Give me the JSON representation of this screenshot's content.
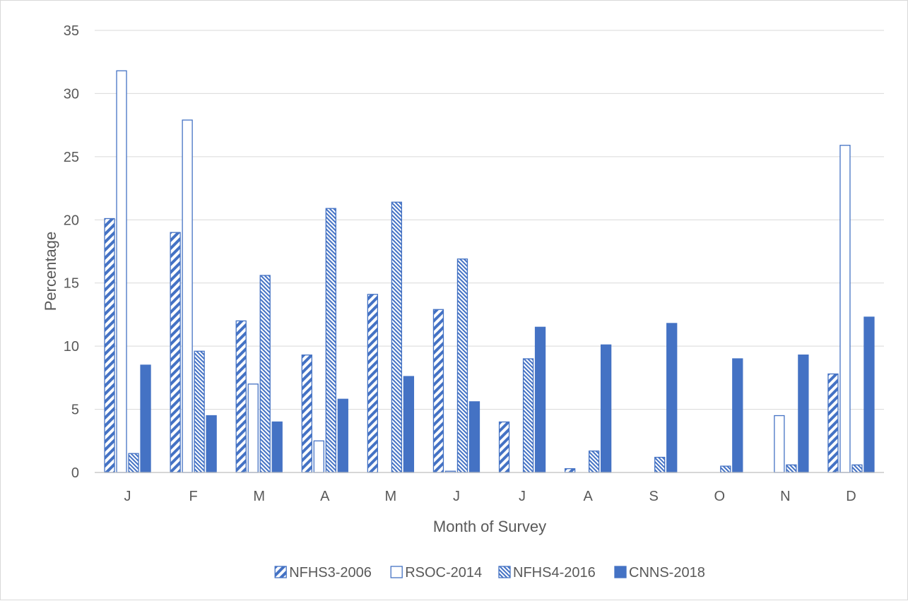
{
  "chart_data": {
    "type": "bar",
    "title": "",
    "xlabel": "Month of Survey",
    "ylabel": "Percentage",
    "ylim": [
      0,
      35
    ],
    "yticks": [
      0,
      5,
      10,
      15,
      20,
      25,
      30,
      35
    ],
    "grid": true,
    "legend_position": "bottom",
    "categories": [
      "J",
      "F",
      "M",
      "A",
      "M",
      "J",
      "J",
      "A",
      "S",
      "O",
      "N",
      "D"
    ],
    "series": [
      {
        "name": "NFHS3-2006",
        "pattern": "wide-diagonal-stripes",
        "color": "#4472c4",
        "values": [
          20.1,
          19.0,
          12.0,
          9.3,
          14.1,
          12.9,
          4.0,
          0.3,
          0,
          0,
          0,
          7.8
        ]
      },
      {
        "name": "RSOC-2014",
        "pattern": "outline",
        "color": "#4472c4",
        "values": [
          31.8,
          27.9,
          7.0,
          2.5,
          0,
          0.1,
          0,
          0,
          0,
          0,
          4.5,
          25.9
        ]
      },
      {
        "name": "NFHS4-2016",
        "pattern": "narrow-diagonal-stripes",
        "color": "#4472c4",
        "values": [
          1.5,
          9.6,
          15.6,
          20.9,
          21.4,
          16.9,
          9.0,
          1.7,
          1.2,
          0.5,
          0.6,
          0.6
        ]
      },
      {
        "name": "CNNS-2018",
        "pattern": "solid",
        "color": "#4472c4",
        "values": [
          8.5,
          4.5,
          4.0,
          5.8,
          7.6,
          5.6,
          11.5,
          10.1,
          11.8,
          9.0,
          9.3,
          12.3
        ]
      }
    ]
  }
}
